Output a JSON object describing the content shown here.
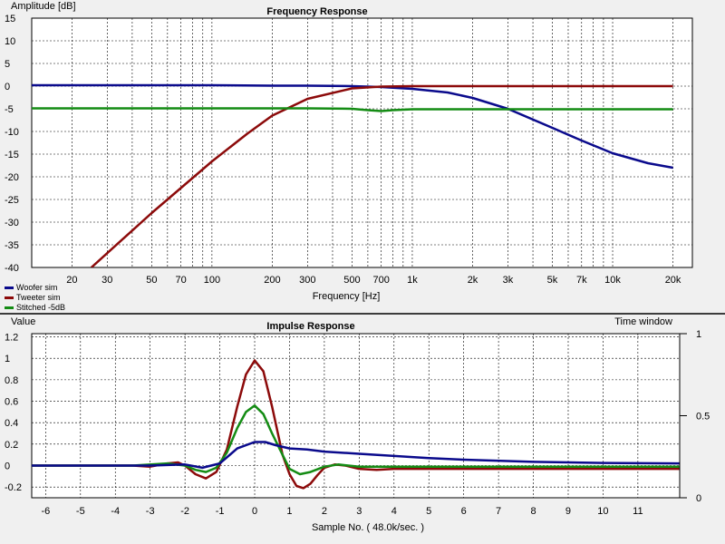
{
  "frequency_panel": {
    "title": "Frequency Response",
    "ylabel": "Amplitude [dB]",
    "xlabel": "Frequency [Hz]",
    "legend": [
      {
        "label": "Woofer sim",
        "color": "#0a0a8c"
      },
      {
        "label": "Tweeter sim",
        "color": "#8c0a0a"
      },
      {
        "label": "Stitched -5dB",
        "color": "#148c14"
      }
    ]
  },
  "impulse_panel": {
    "title": "Impulse Response",
    "ylabel": "Value",
    "xlabel": "Sample No. ( 48.0k/sec. )",
    "right_axis_label": "Time window"
  },
  "chart_data": [
    {
      "type": "line",
      "title": "Frequency Response",
      "xlabel": "Frequency [Hz]",
      "ylabel": "Amplitude [dB]",
      "xscale": "log",
      "xlim": [
        12.6,
        25000
      ],
      "ylim": [
        -40,
        15
      ],
      "y_ticks": [
        15,
        10,
        5,
        0,
        -5,
        -10,
        -15,
        -20,
        -25,
        -30,
        -35,
        -40
      ],
      "x_ticks": [
        {
          "value": 20,
          "label": "20"
        },
        {
          "value": 30,
          "label": "30"
        },
        {
          "value": 50,
          "label": "50"
        },
        {
          "value": 70,
          "label": "70"
        },
        {
          "value": 100,
          "label": "100"
        },
        {
          "value": 200,
          "label": "200"
        },
        {
          "value": 300,
          "label": "300"
        },
        {
          "value": 500,
          "label": "500"
        },
        {
          "value": 700,
          "label": "700"
        },
        {
          "value": 1000,
          "label": "1k"
        },
        {
          "value": 2000,
          "label": "2k"
        },
        {
          "value": 3000,
          "label": "3k"
        },
        {
          "value": 5000,
          "label": "5k"
        },
        {
          "value": 7000,
          "label": "7k"
        },
        {
          "value": 10000,
          "label": "10k"
        },
        {
          "value": 20000,
          "label": "20k"
        }
      ],
      "grid": true,
      "legend_position": "bottom-left",
      "series": [
        {
          "name": "Woofer sim",
          "color": "#0a0a8c",
          "x": [
            12.6,
            50,
            100,
            200,
            300,
            500,
            700,
            1000,
            1500,
            2000,
            3000,
            5000,
            7000,
            10000,
            15000,
            20000
          ],
          "y": [
            0.2,
            0.2,
            0.2,
            0.1,
            0.1,
            0.0,
            -0.2,
            -0.6,
            -1.4,
            -2.6,
            -5.0,
            -9.2,
            -12.0,
            -14.8,
            -17.0,
            -18.0
          ]
        },
        {
          "name": "Tweeter sim",
          "color": "#8c0a0a",
          "x": [
            25,
            50,
            100,
            150,
            200,
            300,
            500,
            700,
            1000,
            2000,
            5000,
            10000,
            20000
          ],
          "y": [
            -40.0,
            -28.0,
            -16.6,
            -10.5,
            -6.5,
            -2.8,
            -0.5,
            -0.1,
            0.0,
            0.0,
            0.0,
            0.0,
            0.0
          ]
        },
        {
          "name": "Stitched -5dB",
          "color": "#148c14",
          "x": [
            12.6,
            100,
            300,
            500,
            600,
            700,
            800,
            1000,
            2000,
            5000,
            10000,
            20000
          ],
          "y": [
            -4.9,
            -4.9,
            -4.9,
            -5.0,
            -5.3,
            -5.5,
            -5.3,
            -5.1,
            -5.1,
            -5.1,
            -5.1,
            -5.1
          ]
        }
      ]
    },
    {
      "type": "line",
      "title": "Impulse Response",
      "xlabel": "Sample No. ( 48.0k/sec. )",
      "ylabel": "Value",
      "xlim": [
        -6.4,
        12.2
      ],
      "ylim": [
        -0.3,
        1.23
      ],
      "y_ticks": [
        1.2,
        1,
        0.8,
        0.6,
        0.4,
        0.2,
        0,
        -0.2
      ],
      "x_ticks": [
        -6,
        -5,
        -4,
        -3,
        -2,
        -1,
        0,
        1,
        2,
        3,
        4,
        5,
        6,
        7,
        8,
        9,
        10,
        11
      ],
      "right_axis": {
        "label": "Time window",
        "ticks": [
          {
            "value": 1,
            "label": "1"
          },
          {
            "value": 0.5,
            "label": "0.5"
          },
          {
            "value": 0,
            "label": "0"
          }
        ]
      },
      "grid": true,
      "series": [
        {
          "name": "Tweeter sim",
          "color": "#8c0a0a",
          "x": [
            -6.4,
            -3.5,
            -3.0,
            -2.5,
            -2.2,
            -2.0,
            -1.7,
            -1.4,
            -1.1,
            -0.8,
            -0.5,
            -0.25,
            0,
            0.25,
            0.5,
            0.8,
            1.0,
            1.2,
            1.4,
            1.6,
            1.8,
            2.0,
            2.3,
            2.6,
            3.0,
            3.5,
            4.0,
            5.0,
            8.0,
            12.2
          ],
          "y": [
            0.0,
            0.0,
            -0.01,
            0.02,
            0.03,
            0.0,
            -0.08,
            -0.12,
            -0.06,
            0.15,
            0.55,
            0.85,
            0.98,
            0.88,
            0.55,
            0.1,
            -0.08,
            -0.19,
            -0.21,
            -0.17,
            -0.09,
            -0.02,
            0.01,
            0.0,
            -0.03,
            -0.04,
            -0.03,
            -0.03,
            -0.03,
            -0.03
          ]
        },
        {
          "name": "Stitched -5dB",
          "color": "#148c14",
          "x": [
            -6.4,
            -3.5,
            -2.5,
            -2.0,
            -1.7,
            -1.4,
            -1.1,
            -0.8,
            -0.5,
            -0.25,
            0,
            0.25,
            0.5,
            0.8,
            1.0,
            1.3,
            1.6,
            2.0,
            2.4,
            3.0,
            4.0,
            8.0,
            12.2
          ],
          "y": [
            0.0,
            0.0,
            0.02,
            0.0,
            -0.04,
            -0.06,
            -0.02,
            0.12,
            0.35,
            0.5,
            0.56,
            0.48,
            0.3,
            0.1,
            -0.03,
            -0.08,
            -0.06,
            -0.01,
            0.01,
            -0.01,
            -0.01,
            -0.01,
            -0.01
          ]
        },
        {
          "name": "Woofer sim",
          "color": "#0a0a8c",
          "x": [
            -6.4,
            -3.0,
            -2.0,
            -1.5,
            -1.0,
            -0.5,
            0,
            0.3,
            0.6,
            1.0,
            1.5,
            2.0,
            3.0,
            4.0,
            5.0,
            6.0,
            8.0,
            10.0,
            12.2
          ],
          "y": [
            0.0,
            0.0,
            0.01,
            -0.02,
            0.02,
            0.16,
            0.22,
            0.22,
            0.19,
            0.16,
            0.15,
            0.13,
            0.11,
            0.09,
            0.07,
            0.055,
            0.035,
            0.025,
            0.02
          ]
        }
      ]
    }
  ]
}
